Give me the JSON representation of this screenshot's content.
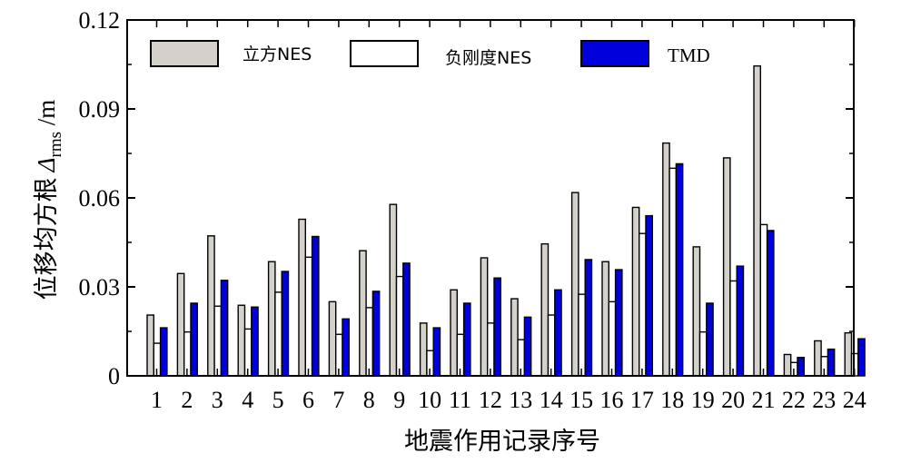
{
  "chart_data": {
    "type": "bar",
    "xlabel": "地震作用记录序号",
    "ylabel": "位移均方根",
    "ylabel_symbol": "Δ",
    "ylabel_subscript": "rms",
    "ylabel_unit": " /m",
    "ylim": [
      0,
      0.12
    ],
    "yticks": [
      0,
      0.03,
      0.06,
      0.09,
      0.12
    ],
    "ytick_labels": [
      "0",
      "0.03",
      "0.06",
      "0.09",
      "0.12"
    ],
    "categories": [
      "1",
      "2",
      "3",
      "4",
      "5",
      "6",
      "7",
      "8",
      "9",
      "10",
      "11",
      "12",
      "13",
      "14",
      "15",
      "16",
      "17",
      "18",
      "19",
      "20",
      "21",
      "22",
      "23",
      "24"
    ],
    "legend_position": "top",
    "grid": false,
    "series": [
      {
        "name": "立方NES",
        "color": "#d4d1ca",
        "values": [
          0.0205,
          0.0345,
          0.0472,
          0.0238,
          0.0385,
          0.0528,
          0.025,
          0.0422,
          0.0578,
          0.0178,
          0.029,
          0.0398,
          0.026,
          0.0445,
          0.0618,
          0.0385,
          0.0568,
          0.0785,
          0.0435,
          0.0735,
          0.1045,
          0.0072,
          0.0118,
          0.0145
        ]
      },
      {
        "name": "负刚度NES",
        "color": "#ffffff",
        "values": [
          0.011,
          0.0148,
          0.0235,
          0.0158,
          0.0282,
          0.04,
          0.014,
          0.023,
          0.0335,
          0.0085,
          0.014,
          0.0178,
          0.0122,
          0.0205,
          0.0275,
          0.025,
          0.048,
          0.07,
          0.0148,
          0.032,
          0.051,
          0.0045,
          0.0065,
          0.0075
        ]
      },
      {
        "name": "TMD",
        "color": "#0000dd",
        "values": [
          0.0162,
          0.0245,
          0.0322,
          0.0232,
          0.0352,
          0.047,
          0.0192,
          0.0285,
          0.038,
          0.0162,
          0.0245,
          0.033,
          0.0198,
          0.029,
          0.0392,
          0.0358,
          0.054,
          0.0715,
          0.0245,
          0.037,
          0.049,
          0.0062,
          0.009,
          0.0125
        ]
      }
    ]
  }
}
